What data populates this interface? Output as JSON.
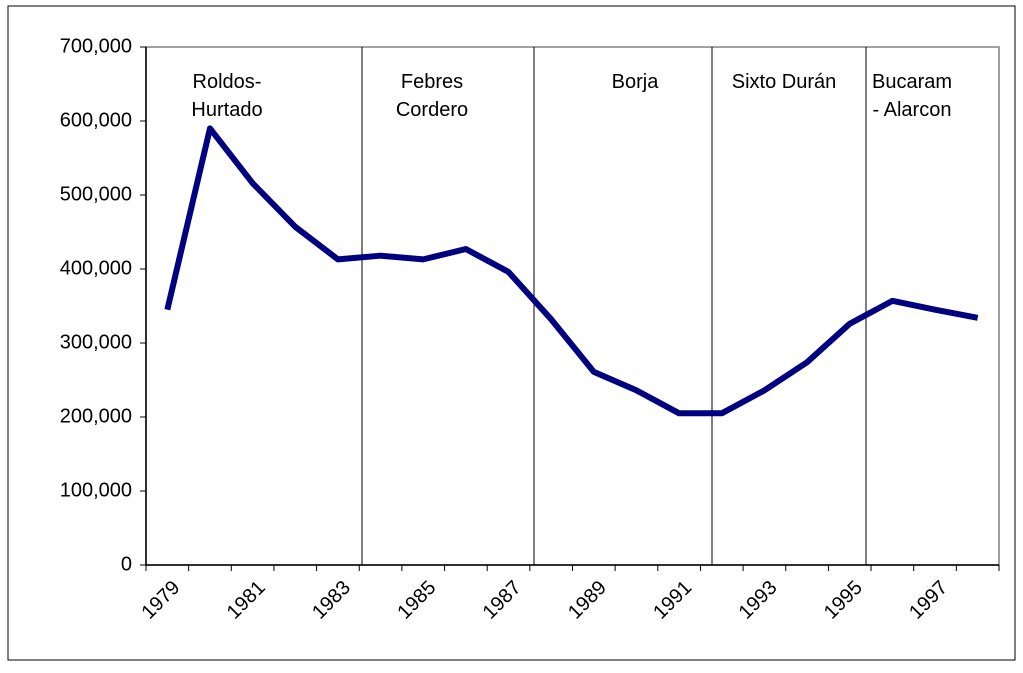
{
  "chart_data": {
    "type": "line",
    "categories": [
      "1979",
      null,
      "1981",
      null,
      "1983",
      null,
      "1985",
      null,
      "1987",
      null,
      "1989",
      null,
      "1991",
      null,
      "1993",
      null,
      "1995",
      null,
      "1997",
      null
    ],
    "series": [
      {
        "color": "#000080",
        "values": [
          345000,
          590000,
          516000,
          457000,
          413000,
          418000,
          413000,
          427000,
          396000,
          332000,
          261000,
          236000,
          205000,
          205000,
          236000,
          274000,
          326000,
          357000,
          345000,
          334000
        ]
      }
    ],
    "ylim": [
      0,
      700000
    ],
    "yticks": [
      0,
      {
        "value": 100000,
        "label": "100,000"
      },
      {
        "value": 200000,
        "label": "200,000"
      },
      {
        "value": 300000,
        "label": "300,000"
      },
      {
        "value": 400000,
        "label": "400,000"
      },
      {
        "value": 500000,
        "label": "500,000"
      },
      {
        "value": 600000,
        "label": "600,000"
      },
      {
        "value": 700000,
        "label": "700,000"
      }
    ],
    "annotations": [
      {
        "lines": [
          "Roldos-",
          "Hurtado"
        ]
      },
      {
        "lines": [
          "Febres",
          "Cordero"
        ]
      },
      {
        "lines": [
          "Borja"
        ]
      },
      {
        "lines": [
          "Sixto Durán"
        ]
      },
      {
        "lines": [
          "Bucaram",
          "- Alarcon"
        ]
      }
    ]
  }
}
